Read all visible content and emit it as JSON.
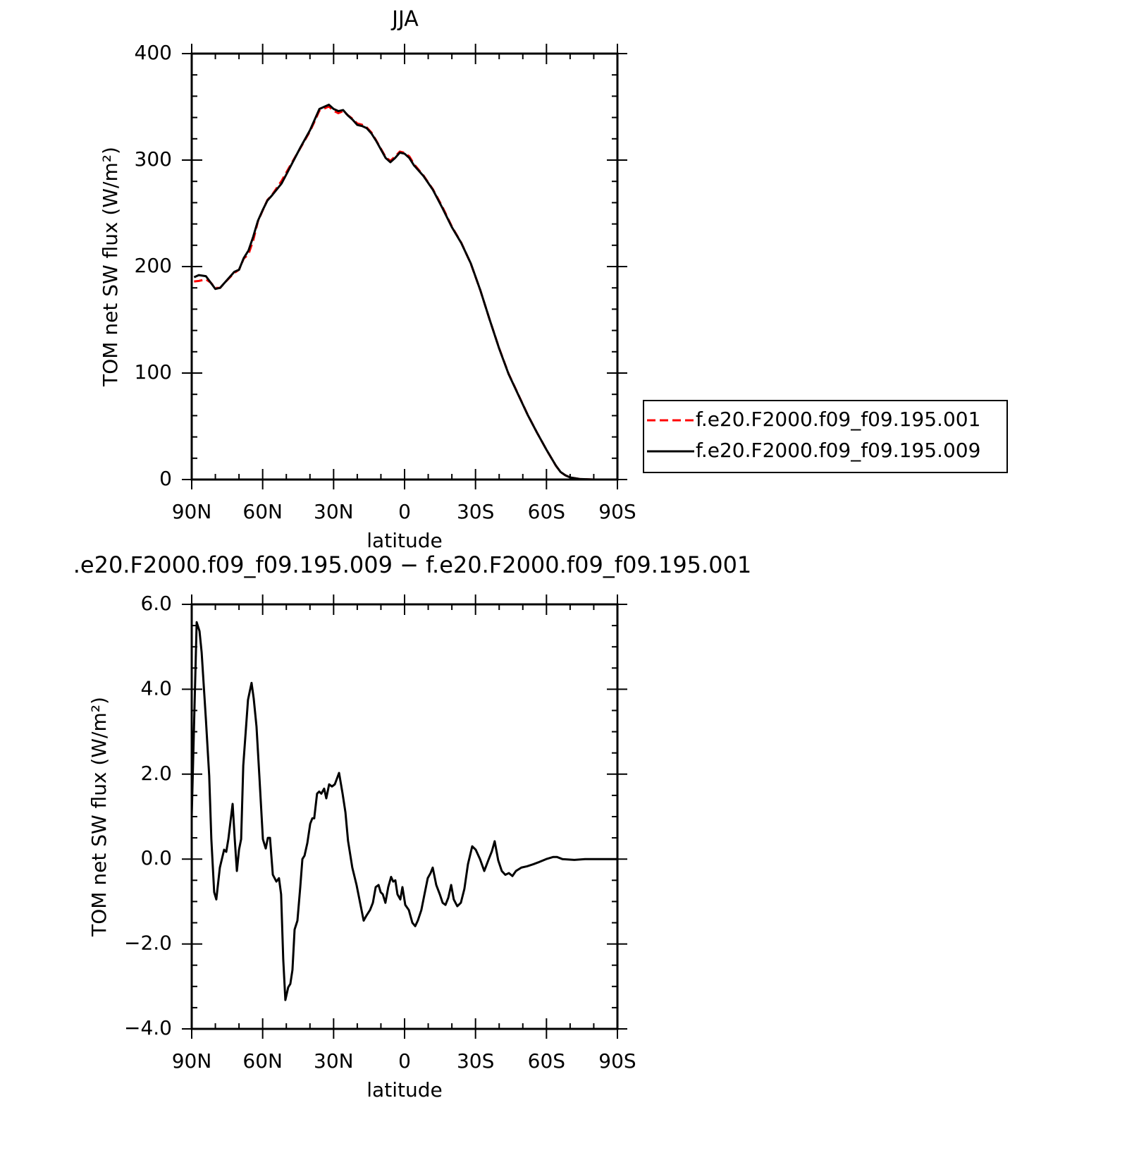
{
  "chart_data": [
    {
      "type": "line",
      "title": "JJA",
      "xlabel": "latitude",
      "ylabel": "TOM net SW flux (W/m²)",
      "xlim": [
        90,
        -90
      ],
      "xticks": [
        {
          "value": 90,
          "label": "90N"
        },
        {
          "value": 60,
          "label": "60N"
        },
        {
          "value": 30,
          "label": "30N"
        },
        0,
        {
          "value": -30,
          "label": "30S"
        },
        {
          "value": -60,
          "label": "60S"
        },
        {
          "value": -90,
          "label": "90S"
        }
      ],
      "ylim": [
        0,
        400
      ],
      "yticks": [
        0,
        100,
        200,
        300,
        400
      ],
      "x": [
        89,
        87,
        84,
        82,
        80,
        78,
        76,
        72,
        70,
        68,
        66,
        64,
        62,
        60,
        58,
        56,
        52,
        48,
        44,
        40,
        38,
        36,
        34,
        32,
        30,
        28,
        26,
        24,
        22,
        20,
        18,
        16,
        14,
        12,
        10,
        8,
        6,
        4,
        2,
        0,
        -2,
        -4,
        -8,
        -12,
        -16,
        -20,
        -24,
        -28,
        -32,
        -36,
        -40,
        -44,
        -48,
        -52,
        -56,
        -60,
        -64,
        -66,
        -68,
        -70,
        -74,
        -80,
        -89
      ],
      "series": [
        {
          "name": "f.e20.F2000.f09_f09.195.001",
          "color": "#ff0000",
          "dashed": true,
          "values": [
            186,
            186.5,
            188,
            185,
            180,
            180,
            185,
            194,
            197,
            207.5,
            211.5,
            224.5,
            242.5,
            252.6,
            262.5,
            267.4,
            280.5,
            296.2,
            311.5,
            327,
            336.5,
            346.5,
            348.4,
            350.3,
            346.3,
            344,
            346,
            342.2,
            338.8,
            334.4,
            333.2,
            330.7,
            325.9,
            318.5,
            310.7,
            302.8,
            299.3,
            303.4,
            308,
            306.8,
            303.5,
            296.2,
            285.5,
            272.5,
            256.1,
            237.6,
            222.3,
            202.8,
            178,
            150,
            123.3,
            99.3,
            80.3,
            61.1,
            44.1,
            27.95,
            12.95,
            7,
            4,
            2,
            0.5,
            0,
            0
          ]
        },
        {
          "name": "f.e20.F2000.f09_f09.195.009",
          "color": "#000000",
          "dashed": false,
          "values": [
            190,
            192,
            191,
            185,
            179,
            180,
            185,
            195,
            197,
            208,
            215,
            228,
            243,
            253,
            262,
            267,
            278,
            295,
            312,
            328,
            338,
            348,
            350,
            352,
            348,
            346,
            347,
            342,
            338,
            333,
            332,
            330,
            325,
            318,
            310,
            302,
            298,
            302,
            307,
            306,
            302,
            295,
            285,
            272,
            255,
            237,
            222,
            203,
            178,
            150,
            123,
            99,
            80,
            61,
            44,
            28,
            13,
            7,
            4,
            2,
            0.5,
            0,
            0
          ]
        }
      ]
    },
    {
      "type": "line",
      "title": ".e20.F2000.f09_f09.195.009 − f.e20.F2000.f09_f09.195.001",
      "xlabel": "latitude",
      "ylabel": "TOM net SW flux (W/m²)",
      "xlim": [
        90,
        -90
      ],
      "xticks": [
        {
          "value": 90,
          "label": "90N"
        },
        {
          "value": 60,
          "label": "60N"
        },
        {
          "value": 30,
          "label": "30N"
        },
        0,
        {
          "value": -30,
          "label": "30S"
        },
        {
          "value": -60,
          "label": "60S"
        },
        {
          "value": -90,
          "label": "90S"
        }
      ],
      "ylim": [
        -4,
        6
      ],
      "yticks": [
        {
          "value": -4,
          "label": "−4.0"
        },
        {
          "value": -2,
          "label": "−2.0"
        },
        {
          "value": 0,
          "label": "0.0"
        },
        {
          "value": 2,
          "label": "2.0"
        },
        {
          "value": 4,
          "label": "4.0"
        },
        {
          "value": 6,
          "label": "6.0"
        }
      ],
      "x": [
        90,
        87.9,
        86.7,
        85.8,
        84.0,
        82.6,
        81.7,
        80.5,
        79.6,
        78.1,
        76.3,
        75.4,
        74.5,
        72.7,
        71.8,
        70.9,
        70.0,
        69.1,
        68.2,
        66.2,
        64.7,
        63.8,
        62.6,
        61.4,
        59.9,
        58.7,
        57.8,
        56.9,
        55.7,
        54.2,
        53.1,
        52.2,
        51.3,
        50.4,
        49.2,
        48.3,
        47.4,
        46.5,
        45.3,
        44.1,
        43.2,
        42.3,
        41.1,
        39.9,
        39.0,
        38.2,
        37.0,
        36.1,
        35.2,
        34.0,
        33.1,
        31.9,
        30.7,
        29.5,
        27.7,
        26.2,
        25.0,
        23.9,
        22.1,
        20.3,
        18.8,
        17.3,
        16.1,
        14.6,
        13.4,
        12.2,
        11.0,
        10.1,
        9.2,
        8.1,
        6.9,
        5.7,
        4.8,
        3.9,
        3.0,
        1.8,
        0.9,
        -0.3,
        -1.8,
        -3.3,
        -4.5,
        -5.6,
        -7.1,
        -8.6,
        -9.8,
        -11.0,
        -11.9,
        -13.4,
        -14.9,
        -16.1,
        -17.3,
        -18.5,
        -19.7,
        -20.8,
        -22.3,
        -23.8,
        -25.3,
        -26.8,
        -28.6,
        -30.1,
        -31.9,
        -33.7,
        -35.4,
        -36.9,
        -38.1,
        -39.6,
        -41.1,
        -42.6,
        -44.1,
        -45.6,
        -47.1,
        -49.4,
        -51.8,
        -54.5,
        -56.9,
        -59.9,
        -62.9,
        -64.4,
        -66.7,
        -71.8,
        -76.3,
        -90
      ],
      "series": [
        {
          "color": "#000000",
          "dashed": false,
          "values": [
            1.0,
            5.58,
            5.37,
            4.87,
            3.29,
            1.96,
            0.47,
            -0.78,
            -0.95,
            -0.2,
            0.22,
            0.17,
            0.47,
            1.3,
            0.47,
            -0.28,
            0.22,
            0.47,
            2.2,
            3.75,
            4.15,
            3.79,
            3.12,
            1.96,
            0.47,
            0.25,
            0.5,
            0.5,
            -0.37,
            -0.53,
            -0.45,
            -0.83,
            -2.36,
            -3.32,
            -3.02,
            -2.94,
            -2.61,
            -1.66,
            -1.45,
            -0.66,
            0,
            0.08,
            0.38,
            0.83,
            0.96,
            0.96,
            1.54,
            1.59,
            1.54,
            1.66,
            1.43,
            1.76,
            1.71,
            1.76,
            2.03,
            1.54,
            1.1,
            0.43,
            -0.2,
            -0.61,
            -1.03,
            -1.45,
            -1.33,
            -1.2,
            -1.03,
            -0.66,
            -0.61,
            -0.78,
            -0.83,
            -1.03,
            -0.66,
            -0.42,
            -0.53,
            -0.5,
            -0.83,
            -0.95,
            -0.66,
            -1.08,
            -1.2,
            -1.5,
            -1.58,
            -1.45,
            -1.2,
            -0.78,
            -0.45,
            -0.33,
            -0.2,
            -0.61,
            -0.83,
            -1.03,
            -1.08,
            -0.91,
            -0.61,
            -0.95,
            -1.11,
            -1.03,
            -0.7,
            -0.12,
            0.3,
            0.22,
            0,
            -0.28,
            -0.03,
            0.18,
            0.42,
            -0.03,
            -0.28,
            -0.37,
            -0.33,
            -0.4,
            -0.28,
            -0.2,
            -0.17,
            -0.12,
            -0.07,
            0,
            0.05,
            0.05,
            0,
            -0.02,
            0,
            0
          ]
        }
      ]
    }
  ]
}
